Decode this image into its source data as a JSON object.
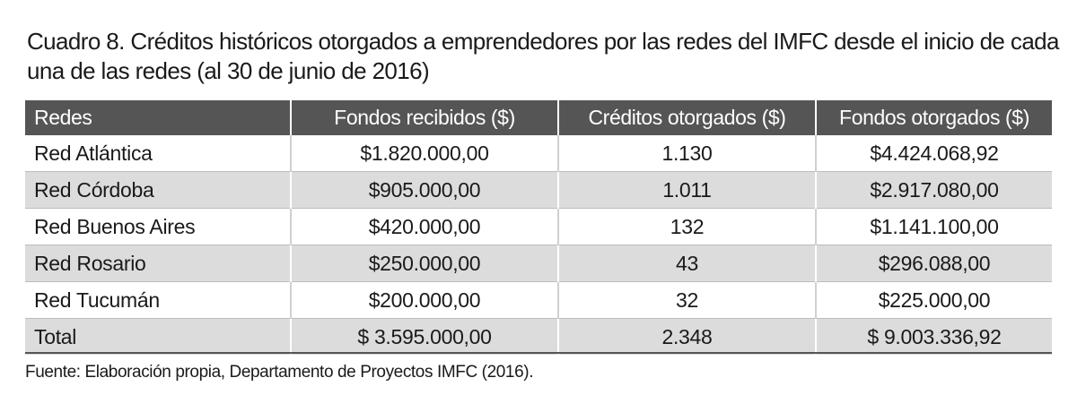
{
  "title": "Cuadro 8. Créditos históricos otorgados a emprendedores por las redes del IMFC desde el inicio de cada una de las redes (al 30 de junio de 2016)",
  "table": {
    "headers": [
      "Redes",
      "Fondos recibidos ($)",
      "Créditos otorgados ($)",
      "Fondos otorgados ($)"
    ],
    "rows": [
      [
        "Red Atlántica",
        "$1.820.000,00",
        "1.130",
        "$4.424.068,92"
      ],
      [
        "Red Córdoba",
        "$905.000,00",
        "1.011",
        "$2.917.080,00"
      ],
      [
        "Red Buenos Aires",
        "$420.000,00",
        "132",
        "$1.141.100,00"
      ],
      [
        "Red Rosario",
        "$250.000,00",
        "43",
        "$296.088,00"
      ],
      [
        "Red Tucumán",
        "$200.000,00",
        "32",
        "$225.000,00"
      ],
      [
        "Total",
        "$ 3.595.000,00",
        "2.348",
        "$ 9.003.336,92"
      ]
    ]
  },
  "source": "Fuente: Elaboración propia, Departamento de Proyectos IMFC (2016).",
  "colors": {
    "header_bg": "#555555",
    "header_text": "#ffffff",
    "stripe_bg": "#dcdcdc",
    "text": "#1a1a1a"
  }
}
